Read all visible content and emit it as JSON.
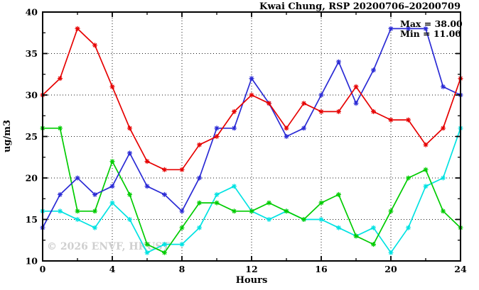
{
  "chart_data": {
    "type": "line",
    "title": "Kwai Chung, RSP 20200706–20200709",
    "xlabel": "Hours",
    "ylabel": "ug/m3",
    "xlim": [
      0,
      24
    ],
    "ylim": [
      10,
      40
    ],
    "x_major_ticks": [
      0,
      4,
      8,
      12,
      16,
      20,
      24
    ],
    "x_minor_tick_step": 2,
    "y_major_ticks": [
      10,
      15,
      20,
      25,
      30,
      35,
      40
    ],
    "y_minor_tick_step": 2.5,
    "grid": "dotted lines at major ticks",
    "legend": "none",
    "marker_style": "asterisk",
    "x": [
      0,
      1,
      2,
      3,
      4,
      5,
      6,
      7,
      8,
      9,
      10,
      11,
      12,
      13,
      14,
      15,
      16,
      17,
      18,
      19,
      20,
      21,
      22,
      23,
      24
    ],
    "series": [
      {
        "name": "series-red",
        "color": "#e60000",
        "values": [
          30,
          32,
          38,
          36,
          31,
          26,
          22,
          21,
          21,
          24,
          25,
          28,
          30,
          29,
          26,
          29,
          28,
          28,
          31,
          28,
          27,
          27,
          24,
          26,
          32
        ]
      },
      {
        "name": "series-blue",
        "color": "#2b2bd5",
        "values": [
          14,
          18,
          20,
          18,
          19,
          23,
          19,
          18,
          16,
          20,
          26,
          26,
          32,
          29,
          25,
          26,
          30,
          34,
          29,
          33,
          38,
          38,
          38,
          31,
          30
        ]
      },
      {
        "name": "series-green",
        "color": "#00cc00",
        "values": [
          26,
          26,
          16,
          16,
          22,
          18,
          12,
          11,
          14,
          17,
          17,
          16,
          16,
          17,
          16,
          15,
          17,
          18,
          13,
          12,
          16,
          20,
          21,
          16,
          14
        ]
      },
      {
        "name": "series-cyan",
        "color": "#00e2e2",
        "values": [
          16,
          16,
          15,
          14,
          17,
          15,
          11,
          12,
          12,
          14,
          18,
          19,
          16,
          15,
          16,
          15,
          15,
          14,
          13,
          14,
          11,
          14,
          19,
          20,
          26
        ]
      }
    ],
    "annotations": {
      "max": "Max = 38.00",
      "min": "Min = 11.00"
    },
    "watermark": "© 2026 ENVF, HKUST"
  }
}
